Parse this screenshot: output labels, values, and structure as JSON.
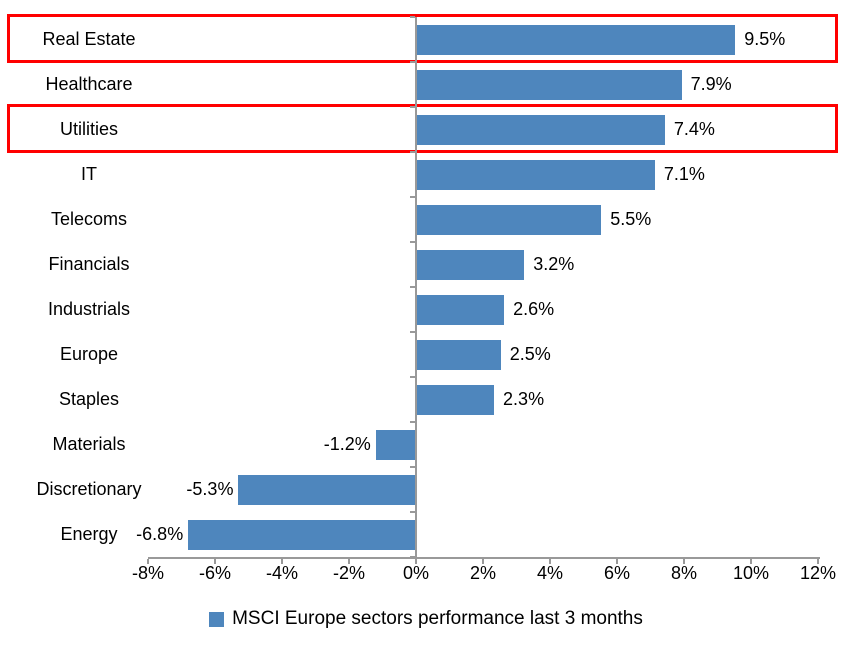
{
  "chart_data": {
    "type": "bar",
    "orientation": "horizontal",
    "title": "",
    "categories": [
      "Real Estate",
      "Healthcare",
      "Utilities",
      "IT",
      "Telecoms",
      "Financials",
      "Industrials",
      "Europe",
      "Staples",
      "Materials",
      "Discretionary",
      "Energy"
    ],
    "values": [
      9.5,
      7.9,
      7.4,
      7.1,
      5.5,
      3.2,
      2.6,
      2.5,
      2.3,
      -1.2,
      -5.3,
      -6.8
    ],
    "data_labels": [
      "9.5%",
      "7.9%",
      "7.4%",
      "7.1%",
      "5.5%",
      "3.2%",
      "2.6%",
      "2.5%",
      "2.3%",
      "-1.2%",
      "-5.3%",
      "-6.8%"
    ],
    "x_tick_labels": [
      "-8%",
      "-6%",
      "-4%",
      "-2%",
      "0%",
      "2%",
      "4%",
      "6%",
      "8%",
      "10%",
      "12%"
    ],
    "x_tick_values": [
      -8,
      -6,
      -4,
      -2,
      0,
      2,
      4,
      6,
      8,
      10,
      12
    ],
    "xlim": [
      -8,
      12
    ],
    "grid": false,
    "legend": "MSCI Europe sectors performance last 3 months",
    "legend_position": "bottom",
    "highlighted_categories": [
      "Real Estate",
      "Utilities"
    ],
    "colors": {
      "bar": "#4E86BD",
      "axis": "#999999",
      "text": "#000000",
      "highlight": "#FF0000",
      "background": "#FFFFFF"
    }
  }
}
